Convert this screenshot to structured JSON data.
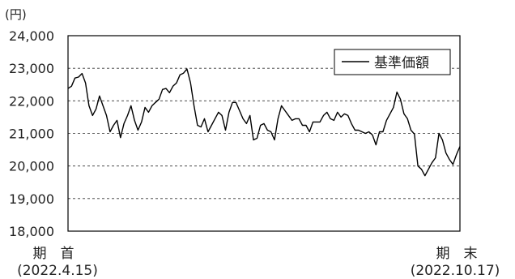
{
  "chart_data": {
    "type": "line",
    "unit_label": "(円)",
    "legend": "基準価額",
    "ylim": [
      18000,
      24000
    ],
    "y_ticks": [
      "24,000",
      "23,000",
      "22,000",
      "21,000",
      "20,000",
      "19,000",
      "18,000"
    ],
    "y_tick_values": [
      24000,
      23000,
      22000,
      21000,
      20000,
      19000,
      18000
    ],
    "grid": "dashed horizontal",
    "legend_position": "top-right",
    "x_start_label": "期　首",
    "x_start_date": "(2022.4.15)",
    "x_end_label": "期　末",
    "x_end_date": "(2022.10.17)",
    "series": [
      {
        "name": "基準価額",
        "color": "#000000",
        "values": [
          22380,
          22450,
          22700,
          22730,
          22840,
          22550,
          21850,
          21550,
          21750,
          22150,
          21850,
          21550,
          21050,
          21250,
          21400,
          20870,
          21300,
          21550,
          21850,
          21400,
          21100,
          21350,
          21800,
          21650,
          21850,
          21950,
          22050,
          22350,
          22380,
          22250,
          22450,
          22550,
          22800,
          22850,
          22980,
          22550,
          21850,
          21250,
          21200,
          21450,
          21050,
          21250,
          21450,
          21650,
          21550,
          21100,
          21650,
          21950,
          21950,
          21700,
          21450,
          21300,
          21550,
          20800,
          20850,
          21250,
          21300,
          21100,
          21050,
          20800,
          21450,
          21850,
          21700,
          21550,
          21400,
          21450,
          21450,
          21250,
          21250,
          21050,
          21350,
          21350,
          21350,
          21550,
          21650,
          21450,
          21400,
          21650,
          21500,
          21600,
          21550,
          21300,
          21100,
          21100,
          21050,
          21000,
          21050,
          20950,
          20650,
          21050,
          21050,
          21400,
          21600,
          21800,
          22270,
          22050,
          21600,
          21450,
          21100,
          20980,
          20000,
          19900,
          19700,
          19900,
          20100,
          20250,
          21000,
          20800,
          20400,
          20200,
          20050,
          20350,
          20600
        ]
      }
    ]
  }
}
